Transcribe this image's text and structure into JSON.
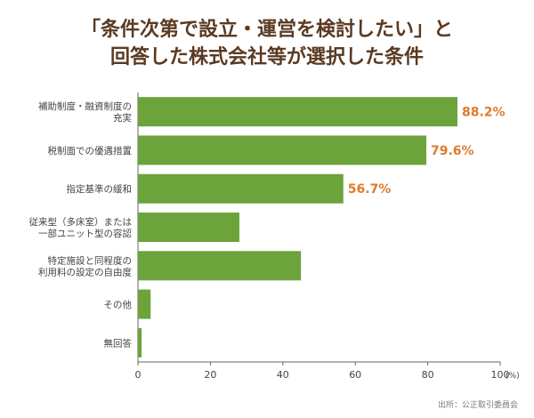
{
  "title_lines": [
    "「条件次第で設立・運営を検討したい」と",
    "回答した株式会社等が選択した条件"
  ],
  "source": "出所：公正取引委員会",
  "colors": {
    "bar": "#6ca33a",
    "label_highlight": "#e07a2a",
    "axis": "#666666",
    "title": "#5a3a22",
    "text": "#444444"
  },
  "chart_data": {
    "type": "bar",
    "orientation": "horizontal",
    "categories": [
      [
        "補助制度・融資制度の",
        "充実"
      ],
      [
        "税制面での優遇措置"
      ],
      [
        "指定基準の緩和"
      ],
      [
        "従来型（多床室）または",
        "一部ユニット型の容認"
      ],
      [
        "特定施設と同程度の",
        "利用料の設定の自由度"
      ],
      [
        "その他"
      ],
      [
        "無回答"
      ]
    ],
    "values": [
      88.2,
      79.6,
      56.7,
      28.0,
      45.0,
      3.5,
      1.0
    ],
    "data_labels": [
      "88.2%",
      "79.6%",
      "56.7%",
      null,
      null,
      null,
      null
    ],
    "xlim": [
      0,
      100
    ],
    "xticks": [
      0,
      20,
      40,
      60,
      80,
      100
    ],
    "x_unit": "(%)",
    "grid": false,
    "legend": "none"
  }
}
